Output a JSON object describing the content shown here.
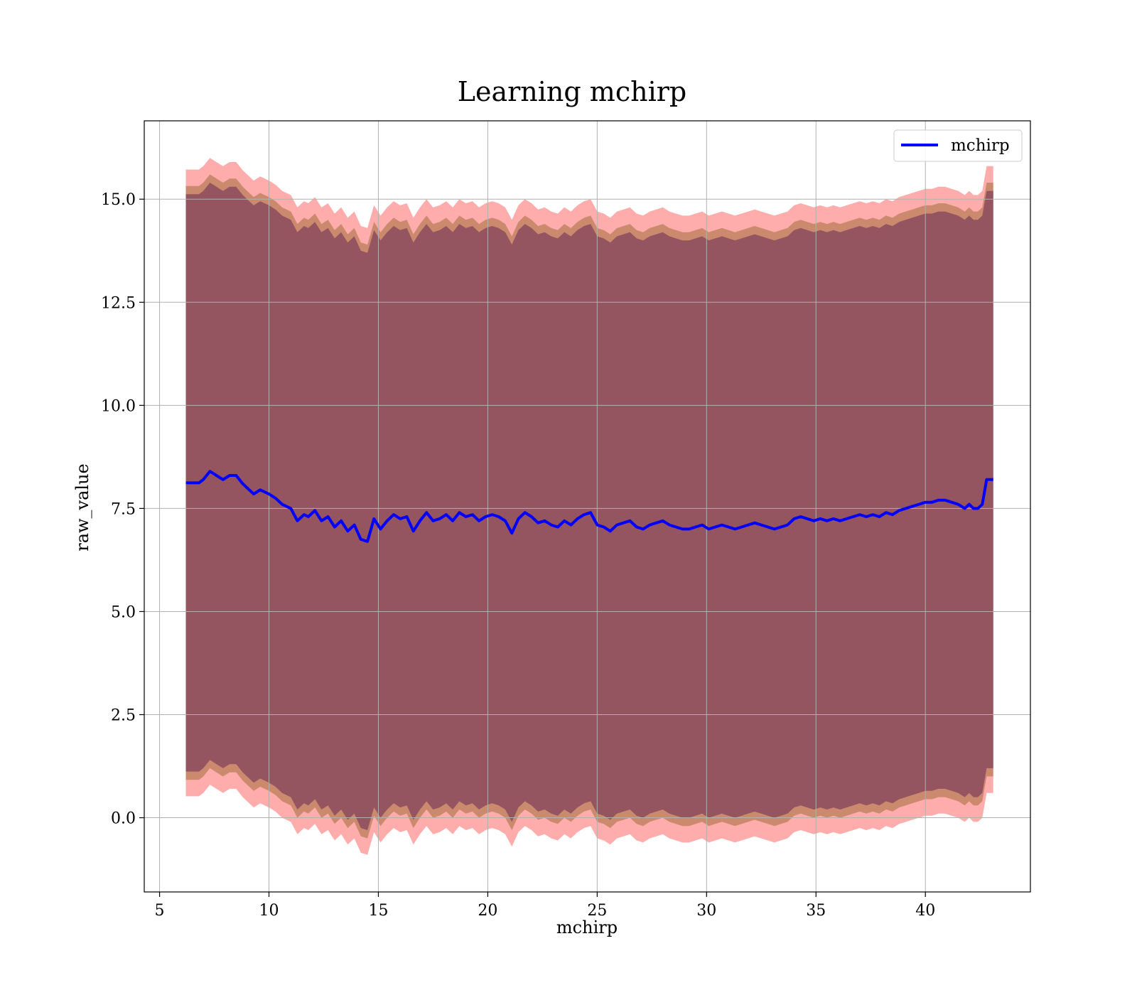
{
  "chart_data": {
    "type": "line",
    "title": "Learning mchirp",
    "xlabel": "mchirp",
    "ylabel": "raw_value",
    "xlim": [
      4.3,
      44.8
    ],
    "ylim": [
      -1.8,
      16.9
    ],
    "xticks": [
      5,
      10,
      15,
      20,
      25,
      30,
      35,
      40
    ],
    "xtick_labels": [
      "5",
      "10",
      "15",
      "20",
      "25",
      "30",
      "35",
      "40"
    ],
    "yticks": [
      0.0,
      2.5,
      5.0,
      7.5,
      10.0,
      12.5,
      15.0
    ],
    "ytick_labels": [
      "0.0",
      "2.5",
      "5.0",
      "7.5",
      "10.0",
      "12.5",
      "15.0"
    ],
    "grid": true,
    "legend": {
      "position": "top-right",
      "entries": [
        "mchirp"
      ]
    },
    "series": [
      {
        "name": "mchirp",
        "color": "#0000ff",
        "x": [
          6.2,
          6.8,
          7.0,
          7.3,
          7.6,
          7.9,
          8.2,
          8.5,
          8.8,
          9.0,
          9.3,
          9.6,
          10.0,
          10.3,
          10.6,
          11.0,
          11.3,
          11.6,
          11.8,
          12.1,
          12.4,
          12.7,
          13.0,
          13.3,
          13.6,
          13.9,
          14.2,
          14.5,
          14.8,
          15.1,
          15.4,
          15.7,
          16.0,
          16.3,
          16.6,
          16.9,
          17.2,
          17.5,
          17.8,
          18.1,
          18.4,
          18.7,
          19.0,
          19.3,
          19.6,
          19.9,
          20.2,
          20.5,
          20.8,
          21.1,
          21.4,
          21.7,
          22.0,
          22.3,
          22.6,
          22.9,
          23.2,
          23.5,
          23.8,
          24.1,
          24.4,
          24.7,
          25.0,
          25.3,
          25.6,
          25.9,
          26.2,
          26.5,
          26.8,
          27.1,
          27.4,
          27.7,
          28.0,
          28.3,
          28.6,
          28.9,
          29.2,
          29.5,
          29.8,
          30.1,
          30.4,
          30.7,
          31.0,
          31.3,
          31.6,
          31.9,
          32.2,
          32.5,
          32.8,
          33.1,
          33.4,
          33.7,
          34.0,
          34.3,
          34.6,
          34.9,
          35.2,
          35.5,
          35.8,
          36.1,
          36.4,
          36.7,
          37.0,
          37.3,
          37.6,
          37.9,
          38.2,
          38.5,
          38.8,
          39.1,
          39.4,
          39.7,
          40.0,
          40.3,
          40.6,
          40.9,
          41.2,
          41.5,
          41.8,
          42.0,
          42.2,
          42.4,
          42.6,
          42.8,
          43.1
        ],
        "values": [
          8.12,
          8.12,
          8.2,
          8.4,
          8.3,
          8.2,
          8.3,
          8.3,
          8.1,
          8.0,
          7.85,
          7.95,
          7.85,
          7.75,
          7.6,
          7.5,
          7.2,
          7.35,
          7.3,
          7.45,
          7.2,
          7.3,
          7.05,
          7.2,
          6.95,
          7.1,
          6.75,
          6.7,
          7.25,
          7.0,
          7.2,
          7.35,
          7.25,
          7.3,
          6.95,
          7.2,
          7.4,
          7.2,
          7.25,
          7.35,
          7.2,
          7.4,
          7.3,
          7.35,
          7.2,
          7.3,
          7.35,
          7.3,
          7.2,
          6.9,
          7.25,
          7.4,
          7.3,
          7.15,
          7.2,
          7.1,
          7.05,
          7.2,
          7.1,
          7.25,
          7.35,
          7.4,
          7.1,
          7.05,
          6.95,
          7.1,
          7.15,
          7.2,
          7.05,
          7.0,
          7.1,
          7.15,
          7.2,
          7.1,
          7.05,
          7.0,
          7.0,
          7.05,
          7.1,
          7.0,
          7.05,
          7.1,
          7.05,
          7.0,
          7.05,
          7.1,
          7.15,
          7.1,
          7.05,
          7.0,
          7.05,
          7.1,
          7.25,
          7.3,
          7.25,
          7.2,
          7.25,
          7.2,
          7.25,
          7.2,
          7.25,
          7.3,
          7.35,
          7.3,
          7.35,
          7.3,
          7.4,
          7.35,
          7.45,
          7.5,
          7.55,
          7.6,
          7.65,
          7.65,
          7.7,
          7.7,
          7.65,
          7.6,
          7.5,
          7.6,
          7.5,
          7.5,
          7.6,
          8.2,
          8.2
        ]
      }
    ],
    "bands": [
      {
        "name": "outer",
        "color": "#ff8080",
        "opacity": 0.65,
        "offset_upper": 7.6,
        "offset_lower": 7.6
      },
      {
        "name": "middle",
        "color": "#a0703c",
        "opacity": 0.55,
        "offset_upper": 7.2,
        "offset_lower": 7.2
      },
      {
        "name": "inner",
        "color": "#8b4a5e",
        "opacity": 0.85,
        "offset_upper": 7.0,
        "offset_lower": 7.0
      }
    ]
  }
}
